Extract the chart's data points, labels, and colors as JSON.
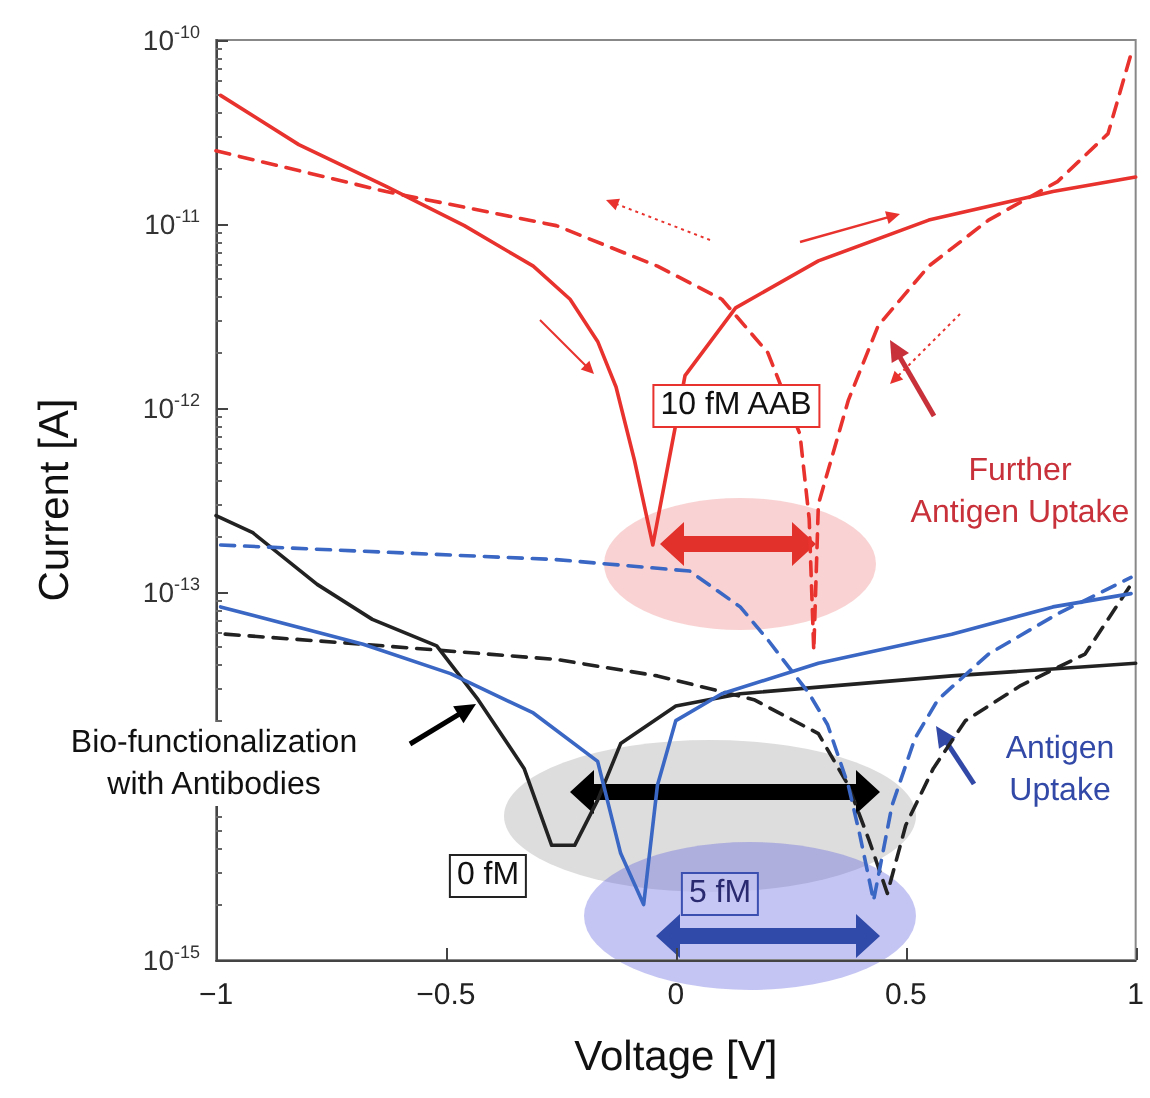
{
  "chart_data": {
    "type": "line",
    "xlabel": "Voltage [V]",
    "ylabel": "Current [A]",
    "log": "y",
    "marker": "none",
    "xlim": [
      -1,
      1
    ],
    "xticks": [
      {
        "value": -1,
        "label": "−1"
      },
      {
        "value": -0.5,
        "label": "−0.5"
      },
      0,
      0.5,
      1
    ],
    "ylim": [
      1e-15,
      1e-10
    ],
    "yticks": [
      {
        "value": 1e-15,
        "label": "10$^{-15}$"
      },
      {
        "value": 1e-14,
        "label": null
      },
      {
        "value": 1e-13,
        "label": "10$^{-13}$"
      },
      {
        "value": 1e-12,
        "label": "10$^{-12}$"
      },
      {
        "value": 1e-11,
        "label": "10$^{-11}$"
      },
      {
        "value": 1e-10,
        "label": "10$^{-10}$"
      }
    ],
    "annotations": [
      "10 fM AAB",
      "Further\nAntigen Uptake",
      "Bio-functionalization\nwith Antibodies",
      "0 fM",
      "5 fM",
      "Antigen\nUptake"
    ],
    "series": [
      {
        "color": "#e8322d",
        "line_style": "solid",
        "x": [
          -0.99,
          -0.82,
          -0.63,
          -0.46,
          -0.31,
          -0.23,
          -0.17,
          -0.13,
          -0.09,
          -0.05,
          0.02,
          0.13,
          0.31,
          0.55,
          0.82,
          1.0
        ],
        "values": [
          5e-11,
          2.7e-11,
          1.6e-11,
          9.8e-12,
          5.9e-12,
          3.9e-12,
          2.3e-12,
          1.3e-12,
          5.2e-13,
          1.8e-13,
          1.5e-12,
          3.5e-12,
          6.3e-12,
          1.05e-11,
          1.5e-11,
          1.8e-11
        ]
      },
      {
        "color": "#e8322d",
        "line_style": "dashed",
        "x": [
          -1,
          -0.63,
          -0.26,
          -0.04,
          0.1,
          0.2,
          0.27,
          0.29,
          0.3,
          0.31,
          0.375,
          0.44,
          0.55,
          0.68,
          0.83,
          0.94,
          0.99
        ],
        "values": [
          2.5e-11,
          1.5e-11,
          9.8e-12,
          5.9e-12,
          3.9e-12,
          2e-12,
          7.2e-13,
          2.5e-13,
          4.8e-14,
          3e-13,
          1.1e-12,
          2.8e-12,
          5.9e-12,
          1.05e-11,
          1.7e-11,
          3.1e-11,
          8.4e-11
        ]
      },
      {
        "color": "#222222",
        "line_style": "solid",
        "x": [
          -1,
          -0.92,
          -0.78,
          -0.66,
          -0.52,
          -0.43,
          -0.33,
          -0.27,
          -0.22,
          -0.17,
          -0.12,
          0.0,
          0.14,
          0.6,
          1.0
        ],
        "values": [
          2.6e-13,
          2.1e-13,
          1.1e-13,
          7.1e-14,
          5.1e-14,
          2.6e-14,
          1.1e-14,
          4.2e-15,
          4.2e-15,
          7.4e-15,
          1.5e-14,
          2.4e-14,
          2.8e-14,
          3.5e-14,
          4.1e-14
        ]
      },
      {
        "color": "#222222",
        "line_style": "dashed",
        "x": [
          -0.98,
          -0.68,
          -0.26,
          -0.04,
          0.17,
          0.31,
          0.375,
          0.42,
          0.46,
          0.5,
          0.56,
          0.63,
          0.75,
          0.89,
          0.99
        ],
        "values": [
          5.9e-14,
          5.2e-14,
          4.3e-14,
          3.5e-14,
          2.6e-14,
          1.7e-14,
          8.9e-15,
          4.5e-15,
          2.3e-15,
          5.4e-15,
          1.1e-14,
          2e-14,
          3.1e-14,
          4.6e-14,
          1.1e-13
        ]
      },
      {
        "color": "#3a66c4",
        "line_style": "solid",
        "x": [
          -0.99,
          -0.68,
          -0.49,
          -0.31,
          -0.17,
          -0.12,
          -0.07,
          -0.04,
          0.0,
          0.1,
          0.31,
          0.6,
          0.82,
          0.99
        ],
        "values": [
          8.3e-14,
          5.2e-14,
          3.6e-14,
          2.2e-14,
          1.2e-14,
          3.8e-15,
          2e-15,
          8.9e-15,
          2e-14,
          2.8e-14,
          4.1e-14,
          5.9e-14,
          8.3e-14,
          9.8e-14
        ]
      },
      {
        "color": "#3a66c4",
        "line_style": "dashed",
        "x": [
          -0.99,
          -0.26,
          0.03,
          0.14,
          0.2,
          0.29,
          0.33,
          0.375,
          0.4,
          0.43,
          0.47,
          0.52,
          0.57,
          0.68,
          0.83,
          0.99
        ],
        "values": [
          1.8e-13,
          1.5e-13,
          1.3e-13,
          8.3e-14,
          5.5e-14,
          2.8e-14,
          1.9e-14,
          8.9e-15,
          4.8e-15,
          2.1e-15,
          6.9e-15,
          1.6e-14,
          2.6e-14,
          4.6e-14,
          7.6e-14,
          1.2e-13
        ]
      }
    ]
  }
}
